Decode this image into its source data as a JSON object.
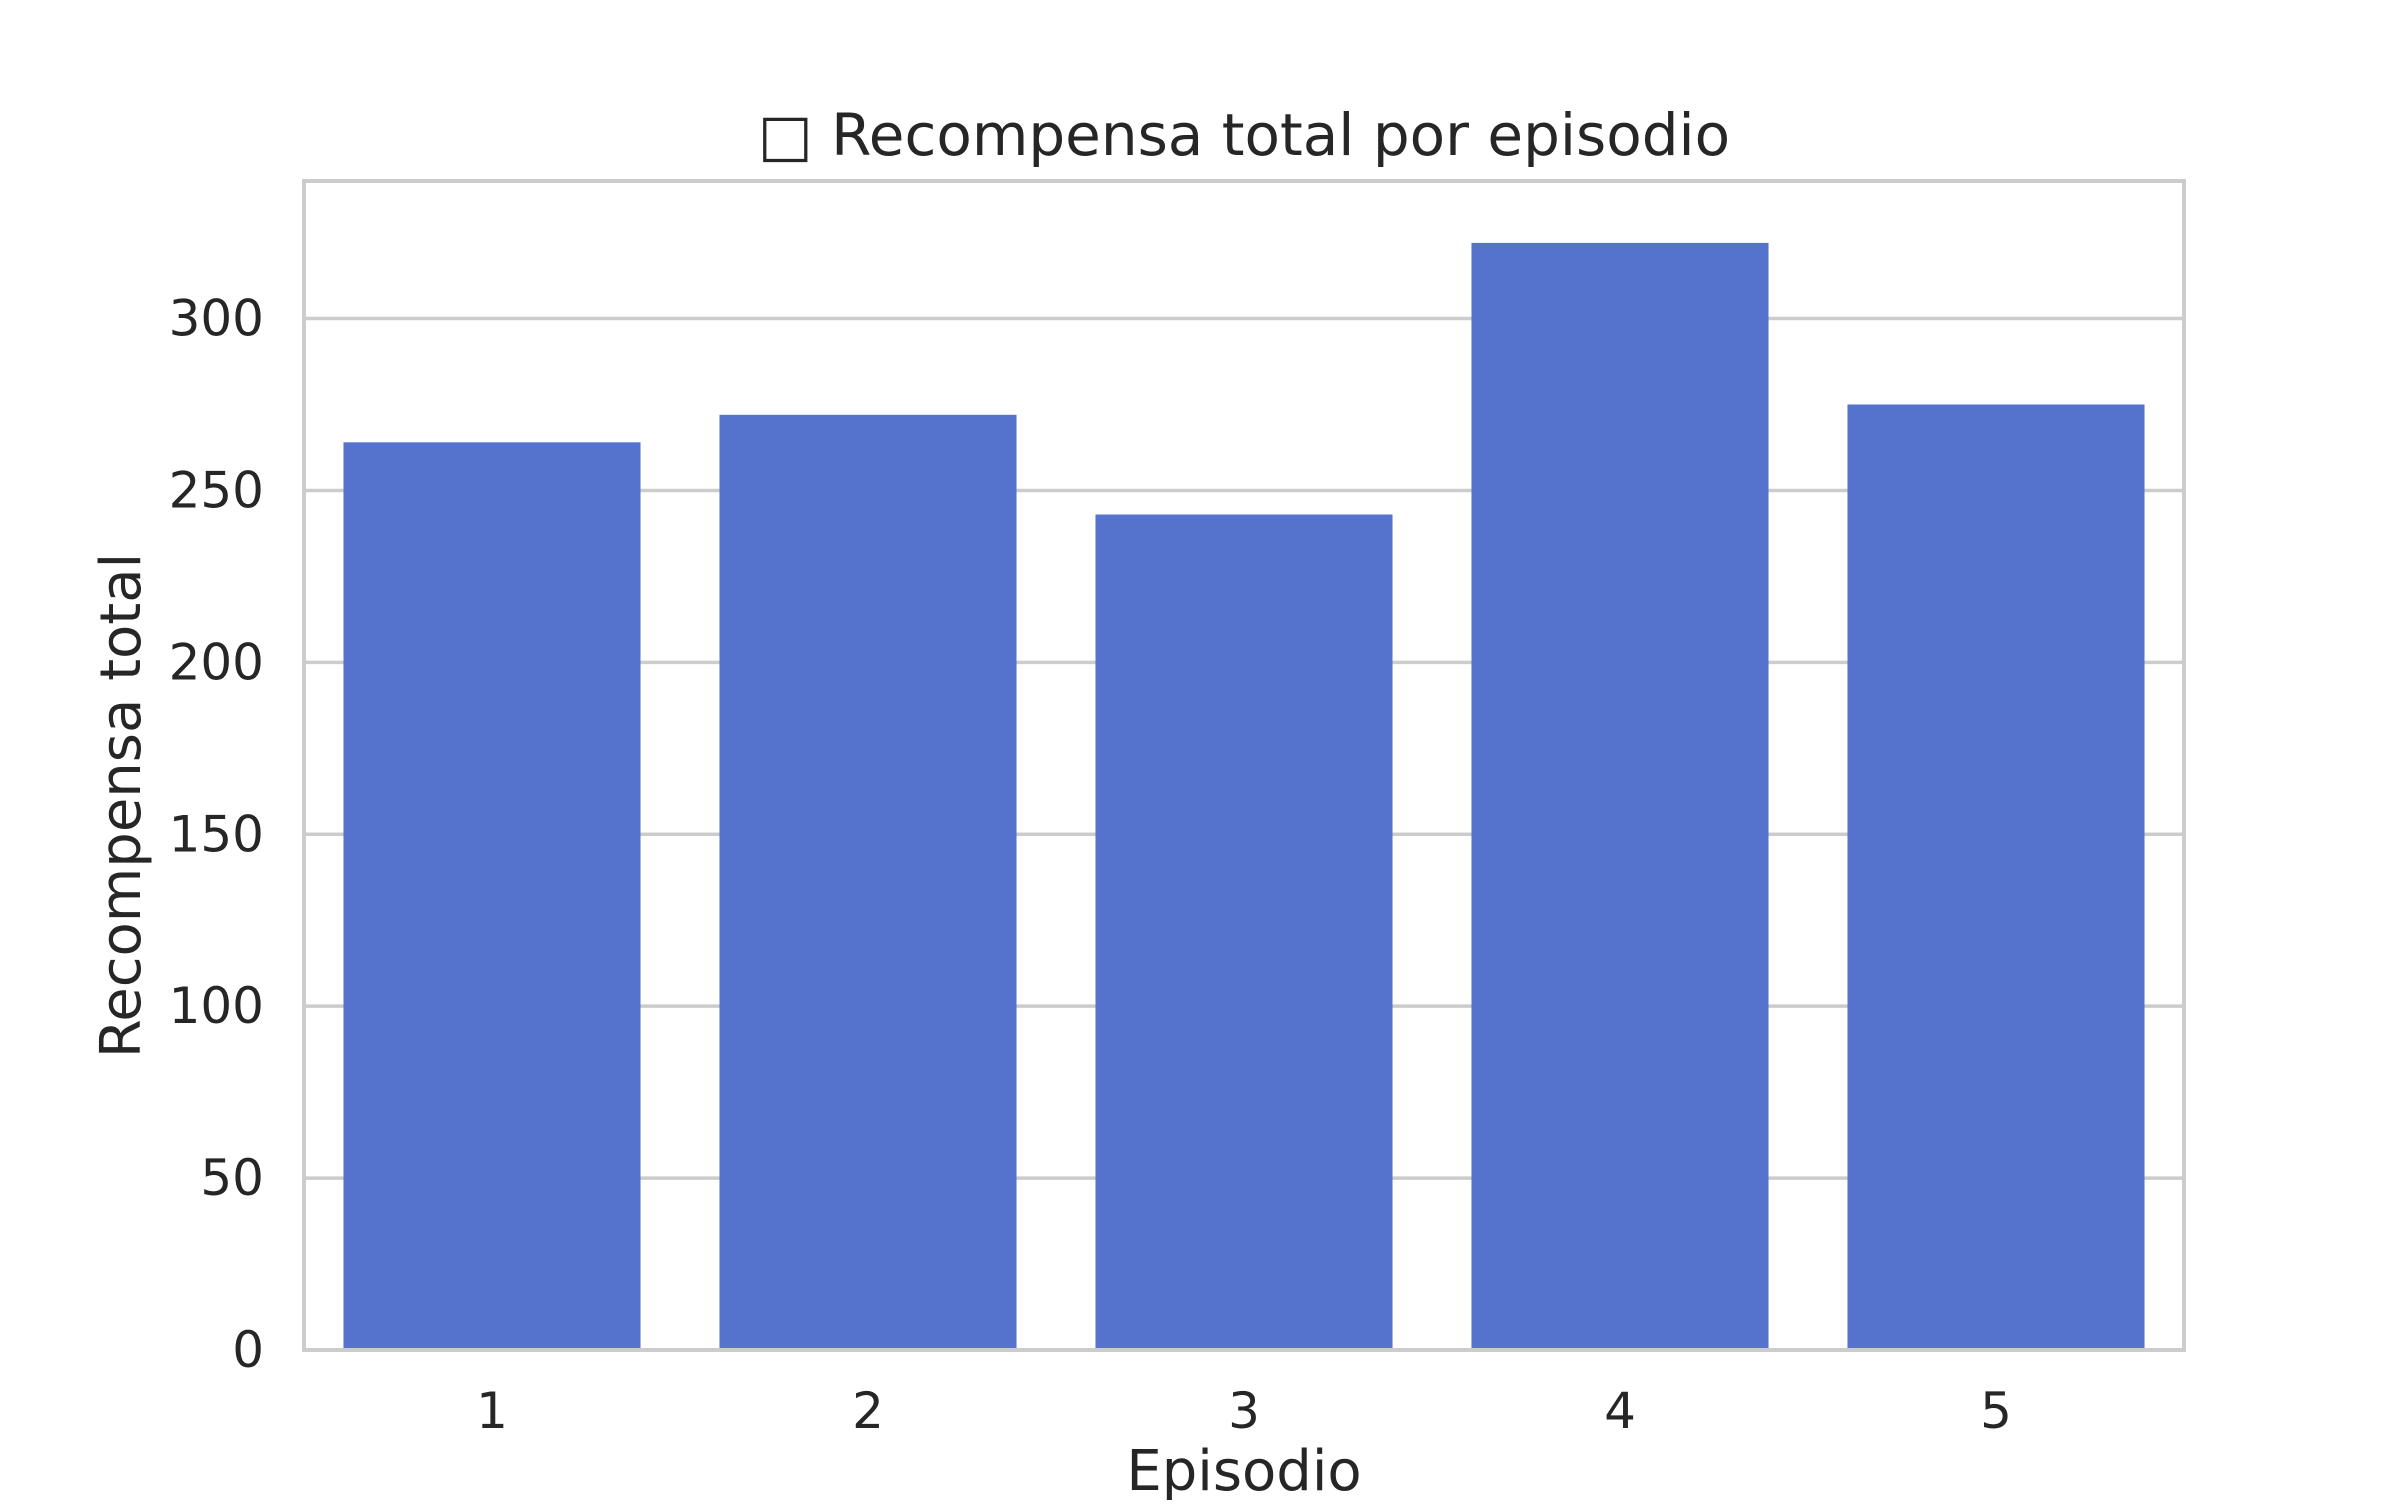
{
  "chart_data": {
    "type": "bar",
    "title": "□ Recompensa total por episodio",
    "xlabel": "Episodio",
    "ylabel": "Recompensa total",
    "categories": [
      "1",
      "2",
      "3",
      "4",
      "5"
    ],
    "series": [
      {
        "values": [
          264,
          272,
          243,
          322,
          275
        ]
      }
    ],
    "ylim": [
      0,
      340
    ],
    "yticks": [
      0,
      50,
      100,
      150,
      200,
      250,
      300
    ],
    "grid": "horizontal",
    "colors": {
      "bar": "#5573cc",
      "grid": "#cccccc",
      "text": "#262626"
    }
  }
}
